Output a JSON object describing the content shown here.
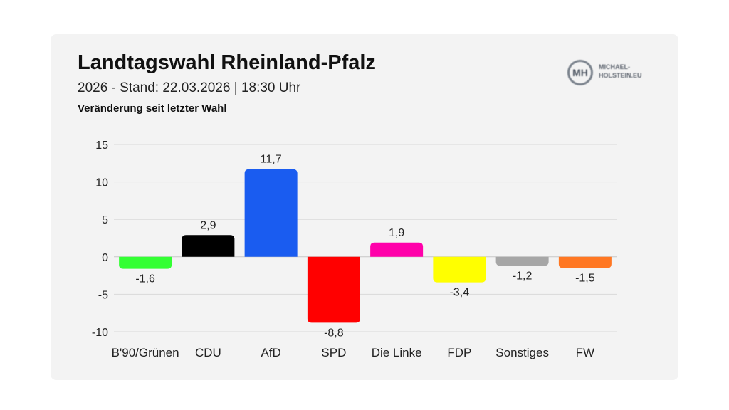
{
  "header": {
    "title": "Landtagswahl Rheinland-Pfalz",
    "subtitle": "2026 - Stand: 22.03.2026 | 18:30 Uhr",
    "caption": "Veränderung seit letzter Wahl"
  },
  "logo": {
    "mark": "MH",
    "line1": "MICHAEL-",
    "line2": "HOLSTEIN.EU"
  },
  "chart_data": {
    "type": "bar",
    "title": "Landtagswahl Rheinland-Pfalz",
    "subtitle": "2026 - Stand: 22.03.2026 | 18:30 Uhr",
    "ylabel": "Veränderung seit letzter Wahl",
    "xlabel": "",
    "categories": [
      "B'90/Grünen",
      "CDU",
      "AfD",
      "SPD",
      "Die Linke",
      "FDP",
      "Sonstiges",
      "FW"
    ],
    "values": [
      -1.6,
      2.9,
      11.7,
      -8.8,
      1.9,
      -3.4,
      -1.2,
      -1.5
    ],
    "value_labels": [
      "-1,6",
      "2,9",
      "11,7",
      "-8,8",
      "1,9",
      "-3,4",
      "-1,2",
      "-1,5"
    ],
    "colors": [
      "#33ff33",
      "#000000",
      "#1a5cf0",
      "#ff0000",
      "#ff00aa",
      "#ffff00",
      "#a6a6a6",
      "#ff7722"
    ],
    "yticks": [
      15,
      10,
      5,
      0,
      -5,
      -10
    ],
    "ytick_labels": [
      "15",
      "10",
      "5",
      "0",
      "-5",
      "-10"
    ],
    "ylim": [
      -10,
      15
    ],
    "grid": true,
    "legend": "none"
  }
}
